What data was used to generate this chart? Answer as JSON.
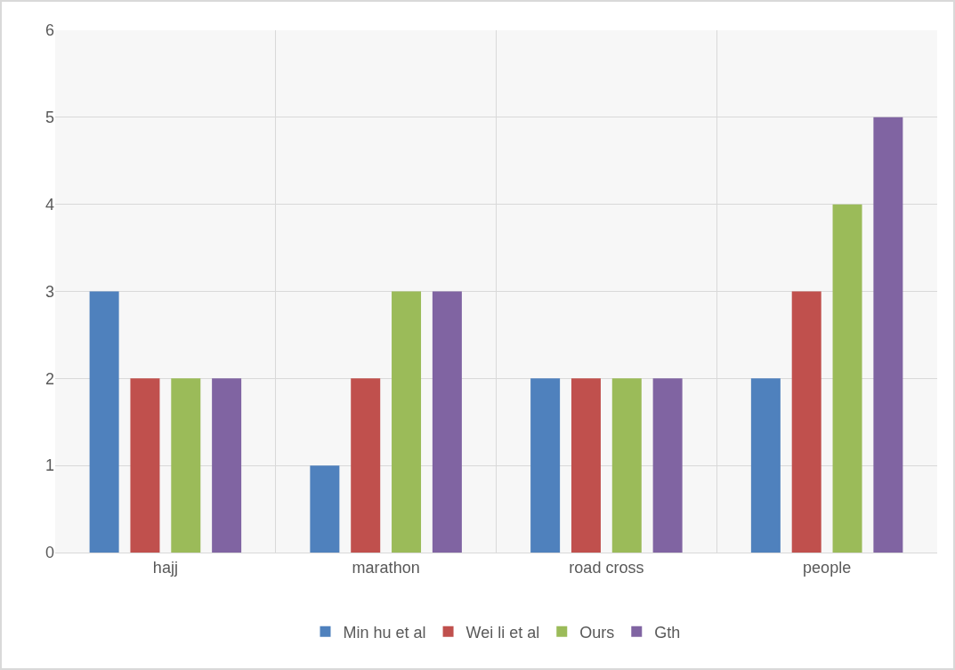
{
  "chart_data": {
    "type": "bar",
    "categories": [
      "hajj",
      "marathon",
      "road cross",
      "people"
    ],
    "series": [
      {
        "name": "Min hu et al",
        "color": "#4f81bd",
        "values": [
          3,
          1,
          2,
          2
        ]
      },
      {
        "name": "Wei li et al",
        "color": "#c0504d",
        "values": [
          2,
          2,
          2,
          3
        ]
      },
      {
        "name": "Ours",
        "color": "#9bbb59",
        "values": [
          2,
          3,
          2,
          4
        ]
      },
      {
        "name": "Gth",
        "color": "#8064a2",
        "values": [
          2,
          3,
          2,
          5
        ]
      }
    ],
    "ylim": [
      0,
      6
    ],
    "yticks": [
      0,
      1,
      2,
      3,
      4,
      5,
      6
    ],
    "grid": true,
    "legend": "bottom"
  }
}
